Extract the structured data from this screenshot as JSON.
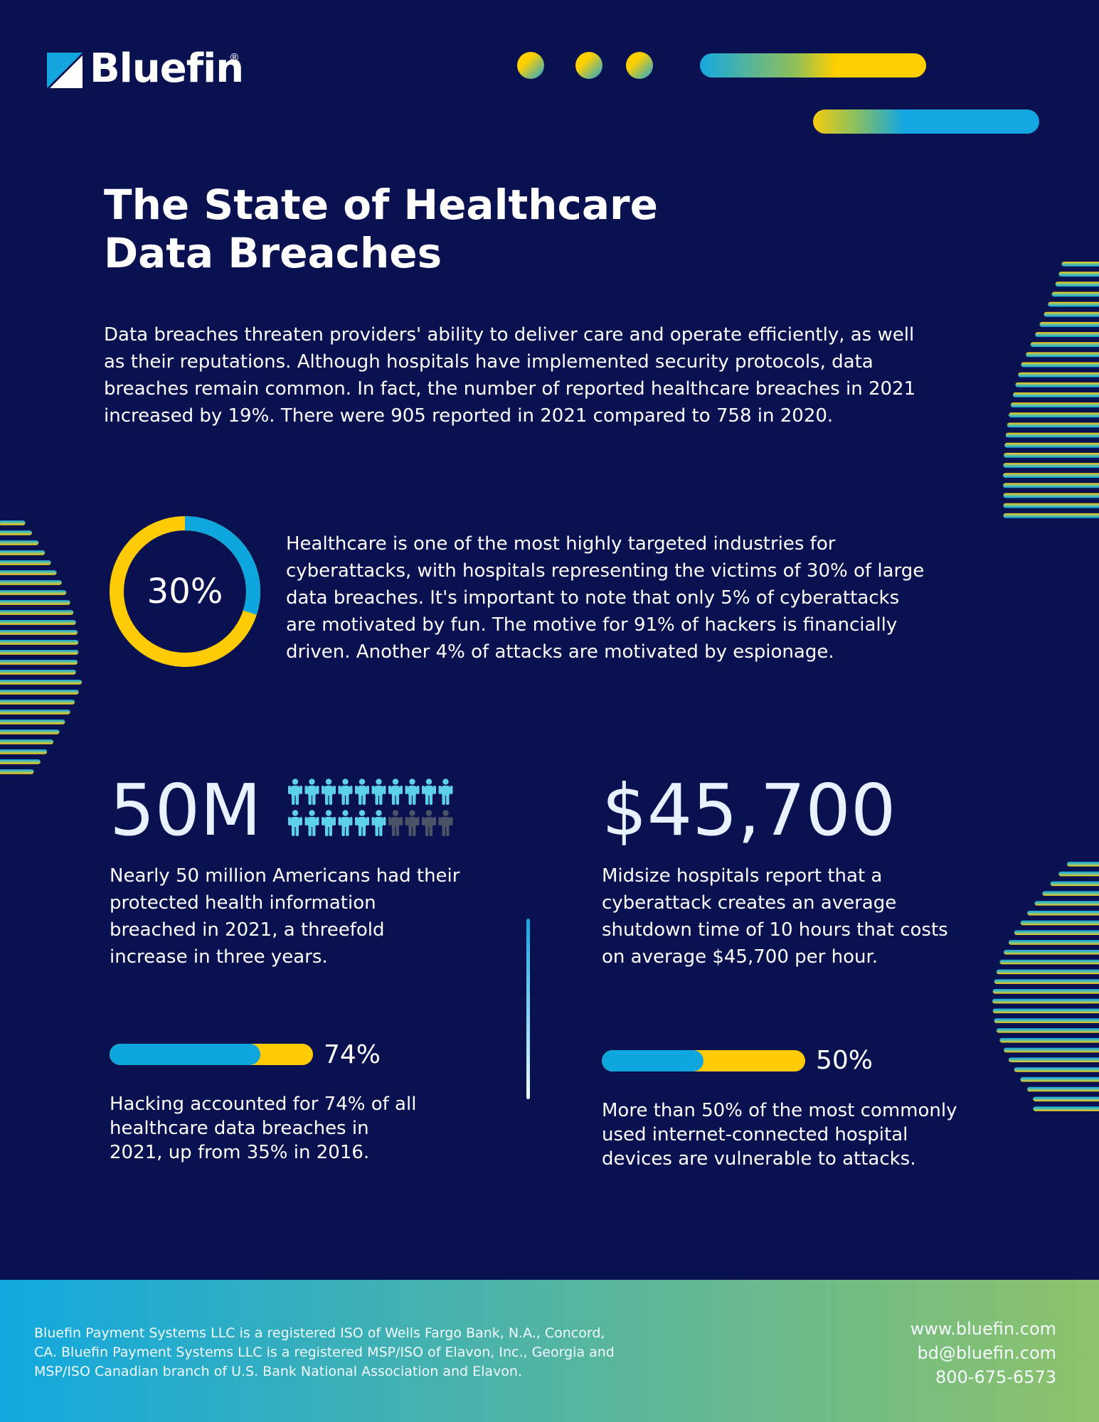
{
  "brand": {
    "name": "Bluefin",
    "registered_mark": "®",
    "colors": {
      "navy": "#0a1150",
      "blue": "#0ea6df",
      "yellow": "#ffcb05",
      "green": "#8dc26a"
    }
  },
  "title_lines": [
    "The State of Healthcare",
    "Data Breaches"
  ],
  "intro_lines": [
    "Data breaches threaten providers' ability to deliver care and operate efficiently, as well",
    "as their reputations. Although hospitals have implemented security protocols, data",
    "breaches remain common. In fact, the number of reported healthcare breaches in 2021",
    "increased by 19%. There were 905 reported in 2021 compared to 758 in 2020."
  ],
  "donut": {
    "label": "30%",
    "value": 30,
    "text_lines": [
      "Healthcare is one of the most highly targeted industries for",
      "cyberattacks, with hospitals representing the victims of 30% of large",
      "data breaches. It's important to note that only 5% of cyberattacks",
      "are motivated by fun. The motive for 91% of hackers is financially",
      "driven. Another 4% of attacks are motivated by espionage."
    ]
  },
  "stat_people": {
    "value": "50M",
    "icon": "person-icon",
    "icons_total": 20,
    "icons_highlighted": 16,
    "text_lines": [
      "Nearly 50 million Americans had their",
      "protected health information",
      "breached in 2021, a threefold",
      "increase in three years."
    ]
  },
  "stat_cost": {
    "value": "$45,700",
    "text_lines": [
      "Midsize hospitals report that a",
      "cyberattack creates an average",
      "shutdown time of 10 hours that costs",
      "on average $45,700 per hour."
    ]
  },
  "bar_hacking": {
    "label": "74%",
    "fraction": 0.74,
    "text_lines": [
      "Hacking accounted for 74% of all",
      "healthcare data breaches in",
      "2021, up from 35% in 2016."
    ]
  },
  "bar_devices": {
    "label": "50%",
    "fraction": 0.5,
    "text_lines": [
      "More than 50% of the most commonly",
      "used internet-connected hospital",
      "devices are vulnerable to attacks."
    ]
  },
  "footer": {
    "legal_lines": [
      "Bluefin Payment Systems LLC is a registered ISO of Wells Fargo Bank, N.A., Concord,",
      "CA. Bluefin Payment Systems LLC is a registered MSP/ISO of Elavon, Inc., Georgia and",
      "MSP/ISO Canadian branch of U.S. Bank National Association and Elavon."
    ],
    "website": "www.bluefin.com",
    "email": "bd@bluefin.com",
    "phone": "800-675-6573"
  }
}
